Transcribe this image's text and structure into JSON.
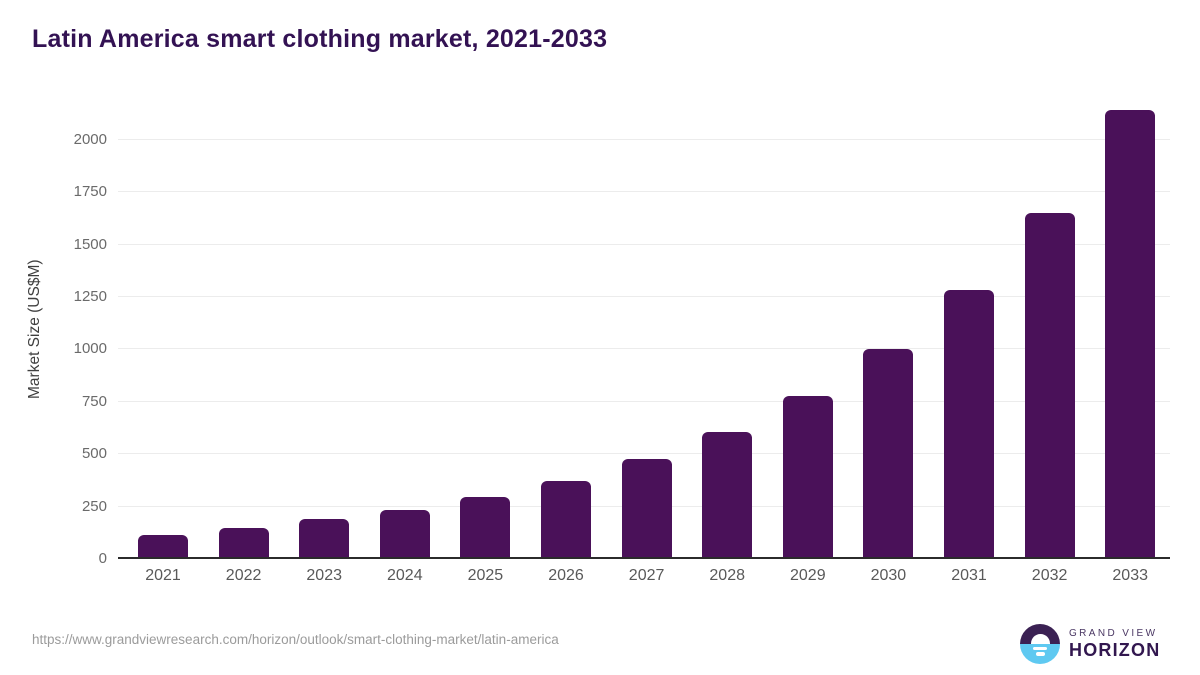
{
  "title": "Latin America smart clothing market, 2021-2033",
  "chart_data": {
    "type": "bar",
    "title": "Latin America smart clothing market, 2021-2033",
    "categories": [
      "2021",
      "2022",
      "2023",
      "2024",
      "2025",
      "2026",
      "2027",
      "2028",
      "2029",
      "2030",
      "2031",
      "2032",
      "2033"
    ],
    "values": [
      115,
      150,
      190,
      235,
      295,
      373,
      475,
      606,
      780,
      1000,
      1285,
      1650,
      2140
    ],
    "xlabel": "",
    "ylabel": "Market Size (US$M)",
    "ylim": [
      0,
      2190
    ],
    "yticks": [
      0,
      250,
      500,
      750,
      1000,
      1250,
      1500,
      1750,
      2000
    ],
    "grid": true,
    "legend": false,
    "bar_color": "#4a1159"
  },
  "footer": {
    "source_url": "https://www.grandviewresearch.com/horizon/outlook/smart-clothing-market/latin-america"
  },
  "logo": {
    "line1": "GRAND VIEW",
    "line2": "HORIZON"
  },
  "colors": {
    "title_text": "#331253",
    "bar": "#4a1159",
    "gridline": "#ececec",
    "axis_line": "#2b2b2b",
    "y_tick_text": "#6a6a6a",
    "x_tick_text": "#595959",
    "source_text": "#9b9b9b",
    "logo_purple": "#3b2153",
    "logo_blue": "#5fc9f1"
  }
}
